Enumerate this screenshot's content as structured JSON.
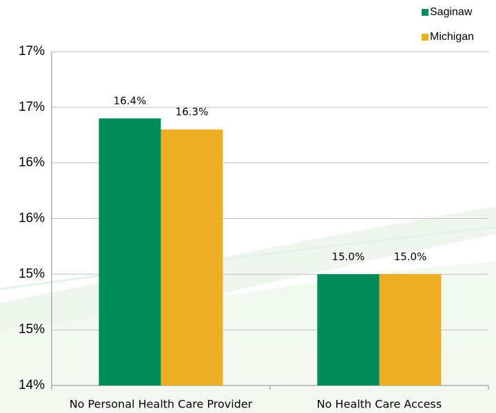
{
  "chart_data": {
    "type": "bar",
    "categories": [
      "No Personal Health Care Provider",
      "No Health Care Access"
    ],
    "series": [
      {
        "name": "Saginaw",
        "color": "#008c5a",
        "values": [
          16.4,
          15.0
        ],
        "value_labels": [
          "16.4%",
          "15.0%"
        ]
      },
      {
        "name": "Michigan",
        "color": "#ebaf23",
        "values": [
          16.3,
          15.0
        ],
        "value_labels": [
          "16.3%",
          "15.0%"
        ]
      }
    ],
    "ylim": [
      14,
      17
    ],
    "yticks": [
      {
        "value": 14,
        "label": "14%"
      },
      {
        "value": 14.5,
        "label": "15%"
      },
      {
        "value": 15,
        "label": "15%"
      },
      {
        "value": 15.5,
        "label": "16%"
      },
      {
        "value": 16,
        "label": "16%"
      },
      {
        "value": 16.5,
        "label": "17%"
      },
      {
        "value": 17,
        "label": "17%"
      }
    ],
    "grid": true,
    "legend": "top-right"
  }
}
